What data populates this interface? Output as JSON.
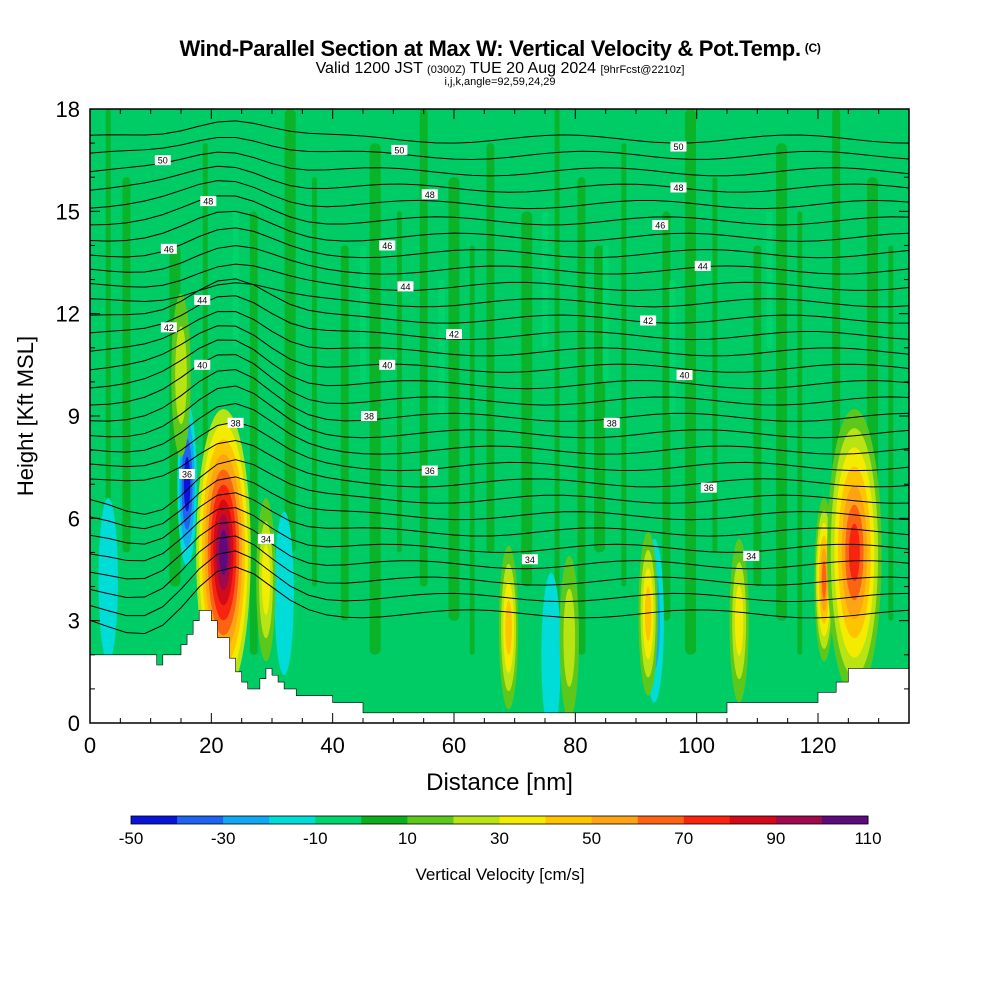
{
  "header": {
    "title": "Wind-Parallel Section at Max W: Vertical Velocity & Pot.Temp.",
    "copyright": "(C)",
    "valid_prefix": "Valid 1200 JST",
    "valid_utc": "(0300Z)",
    "valid_date": "TUE 20 Aug 2024",
    "forecast": "[9hrFcst@2210z]",
    "indices": "i,j,k,angle=92,59,24,29"
  },
  "chart_data": {
    "type": "heatmap",
    "xlabel": "Distance [nm]",
    "ylabel": "Height [Kft MSL]",
    "xlim": [
      0,
      135
    ],
    "ylim": [
      0,
      18
    ],
    "xticks": [
      0,
      20,
      40,
      60,
      80,
      100,
      120
    ],
    "yticks": [
      0,
      3,
      6,
      9,
      12,
      15,
      18
    ],
    "colorbar": {
      "label": "Vertical Velocity [cm/s]",
      "levels": [
        -50,
        -40,
        -30,
        -20,
        -10,
        0,
        10,
        20,
        30,
        40,
        50,
        60,
        70,
        80,
        90,
        100,
        110
      ],
      "tick_labels": [
        "-50",
        "-30",
        "-10",
        "10",
        "30",
        "50",
        "70",
        "90",
        "110"
      ],
      "colors": [
        "#0a14d8",
        "#1e64ee",
        "#12a8f0",
        "#00dcd8",
        "#00d46c",
        "#0cae1c",
        "#5cc81c",
        "#b8e414",
        "#f4ec00",
        "#ffc400",
        "#fca414",
        "#fc6414",
        "#f82410",
        "#d20a1a",
        "#a00a4c",
        "#5c0a7c"
      ],
      "background": "#00cc66"
    },
    "terrain": [
      [
        0,
        2.0
      ],
      [
        11,
        2.0
      ],
      [
        11,
        1.7
      ],
      [
        12,
        1.7
      ],
      [
        12,
        2.0
      ],
      [
        15,
        2.0
      ],
      [
        15,
        2.3
      ],
      [
        16,
        2.3
      ],
      [
        16,
        2.6
      ],
      [
        17,
        2.6
      ],
      [
        17,
        3.0
      ],
      [
        18,
        3.0
      ],
      [
        18,
        3.3
      ],
      [
        20,
        3.3
      ],
      [
        20,
        3.0
      ],
      [
        21,
        3.0
      ],
      [
        21,
        2.5
      ],
      [
        23,
        2.5
      ],
      [
        23,
        1.9
      ],
      [
        24,
        1.9
      ],
      [
        24,
        1.5
      ],
      [
        25,
        1.5
      ],
      [
        25,
        1.2
      ],
      [
        26,
        1.2
      ],
      [
        26,
        1.0
      ],
      [
        28,
        1.0
      ],
      [
        28,
        1.3
      ],
      [
        29,
        1.3
      ],
      [
        29,
        1.6
      ],
      [
        30,
        1.6
      ],
      [
        30,
        1.4
      ],
      [
        31,
        1.4
      ],
      [
        31,
        1.2
      ],
      [
        32,
        1.2
      ],
      [
        32,
        1.0
      ],
      [
        34,
        1.0
      ],
      [
        34,
        0.8
      ],
      [
        40,
        0.8
      ],
      [
        40,
        0.6
      ],
      [
        45,
        0.6
      ],
      [
        45,
        0.3
      ],
      [
        105,
        0.3
      ],
      [
        105,
        0.6
      ],
      [
        120,
        0.6
      ],
      [
        120,
        0.9
      ],
      [
        123,
        0.9
      ],
      [
        123,
        1.2
      ],
      [
        125,
        1.2
      ],
      [
        125,
        1.6
      ],
      [
        135,
        1.6
      ]
    ],
    "theta_labels": [
      {
        "x": 12,
        "y": 16.5,
        "text": "50"
      },
      {
        "x": 51,
        "y": 16.8,
        "text": "50"
      },
      {
        "x": 97,
        "y": 16.9,
        "text": "50"
      },
      {
        "x": 19.5,
        "y": 15.3,
        "text": "48"
      },
      {
        "x": 56,
        "y": 15.5,
        "text": "48"
      },
      {
        "x": 97,
        "y": 15.7,
        "text": "48"
      },
      {
        "x": 94,
        "y": 14.6,
        "text": "46"
      },
      {
        "x": 13,
        "y": 13.9,
        "text": "46"
      },
      {
        "x": 49,
        "y": 14.0,
        "text": "46"
      },
      {
        "x": 101,
        "y": 13.4,
        "text": "44"
      },
      {
        "x": 18.5,
        "y": 12.4,
        "text": "44"
      },
      {
        "x": 52,
        "y": 12.8,
        "text": "44"
      },
      {
        "x": 13,
        "y": 11.6,
        "text": "42"
      },
      {
        "x": 60,
        "y": 11.4,
        "text": "42"
      },
      {
        "x": 92,
        "y": 11.8,
        "text": "42"
      },
      {
        "x": 18.5,
        "y": 10.5,
        "text": "40"
      },
      {
        "x": 49,
        "y": 10.5,
        "text": "40"
      },
      {
        "x": 98,
        "y": 10.2,
        "text": "40"
      },
      {
        "x": 24,
        "y": 8.8,
        "text": "38"
      },
      {
        "x": 46,
        "y": 9.0,
        "text": "38"
      },
      {
        "x": 86,
        "y": 8.8,
        "text": "38"
      },
      {
        "x": 16,
        "y": 7.3,
        "text": "36"
      },
      {
        "x": 56,
        "y": 7.4,
        "text": "36"
      },
      {
        "x": 102,
        "y": 6.9,
        "text": "36"
      },
      {
        "x": 29,
        "y": 5.4,
        "text": "34"
      },
      {
        "x": 72.5,
        "y": 4.8,
        "text": "34"
      },
      {
        "x": 109,
        "y": 4.9,
        "text": "34"
      }
    ],
    "updraft_cells": [
      {
        "x": 22,
        "y": 5.0,
        "min": 20,
        "max": 110
      },
      {
        "x": 29,
        "y": 4.2,
        "min": 10,
        "max": 40
      },
      {
        "x": 69,
        "y": 2.8,
        "min": 10,
        "max": 50
      },
      {
        "x": 79,
        "y": 2.5,
        "min": 10,
        "max": 30
      },
      {
        "x": 92,
        "y": 3.2,
        "min": 10,
        "max": 50
      },
      {
        "x": 107,
        "y": 3.0,
        "min": 10,
        "max": 40
      },
      {
        "x": 121,
        "y": 4.2,
        "min": 10,
        "max": 70
      },
      {
        "x": 126,
        "y": 5.0,
        "min": 10,
        "max": 80
      },
      {
        "x": 15,
        "y": 10.2,
        "min": 10,
        "max": 30
      }
    ],
    "downdraft_cells": [
      {
        "x": 16,
        "y": 7.0,
        "min": -50,
        "max": -10
      },
      {
        "x": 3,
        "y": 4.2,
        "min": -20,
        "max": -10
      },
      {
        "x": 93,
        "y": 3.0,
        "min": -30,
        "max": -10
      },
      {
        "x": 76,
        "y": 2.0,
        "min": -20,
        "max": -10
      },
      {
        "x": 32,
        "y": 3.8,
        "min": -20,
        "max": -10
      }
    ]
  }
}
